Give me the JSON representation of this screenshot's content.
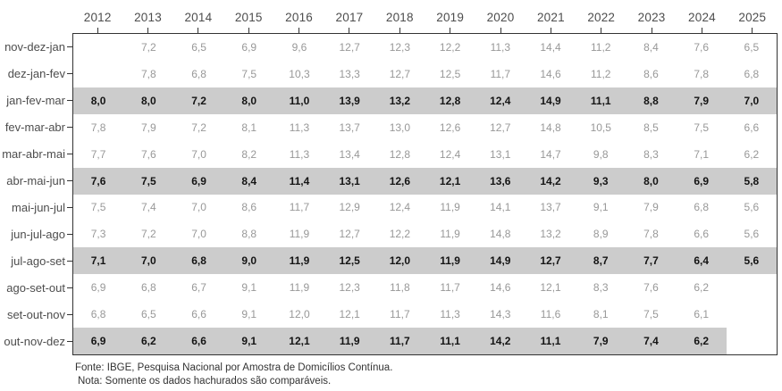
{
  "chart_data": {
    "type": "table",
    "title": "",
    "columns": [
      "2012",
      "2013",
      "2014",
      "2015",
      "2016",
      "2017",
      "2018",
      "2019",
      "2020",
      "2021",
      "2022",
      "2023",
      "2024",
      "2025"
    ],
    "rows": [
      {
        "label": "nov-dez-jan",
        "comparable": false,
        "values": [
          null,
          7.2,
          6.5,
          6.9,
          9.6,
          12.7,
          12.3,
          12.2,
          11.3,
          14.4,
          11.2,
          8.4,
          7.6,
          6.5
        ]
      },
      {
        "label": "dez-jan-fev",
        "comparable": false,
        "values": [
          null,
          7.8,
          6.8,
          7.5,
          10.3,
          13.3,
          12.7,
          12.5,
          11.7,
          14.6,
          11.2,
          8.6,
          7.8,
          6.8
        ]
      },
      {
        "label": "jan-fev-mar",
        "comparable": true,
        "values": [
          8.0,
          8.0,
          7.2,
          8.0,
          11.0,
          13.9,
          13.2,
          12.8,
          12.4,
          14.9,
          11.1,
          8.8,
          7.9,
          7.0
        ]
      },
      {
        "label": "fev-mar-abr",
        "comparable": false,
        "values": [
          7.8,
          7.9,
          7.2,
          8.1,
          11.3,
          13.7,
          13.0,
          12.6,
          12.7,
          14.8,
          10.5,
          8.5,
          7.5,
          6.6
        ]
      },
      {
        "label": "mar-abr-mai",
        "comparable": false,
        "values": [
          7.7,
          7.6,
          7.0,
          8.2,
          11.3,
          13.4,
          12.8,
          12.4,
          13.1,
          14.7,
          9.8,
          8.3,
          7.1,
          6.2
        ]
      },
      {
        "label": "abr-mai-jun",
        "comparable": true,
        "values": [
          7.6,
          7.5,
          6.9,
          8.4,
          11.4,
          13.1,
          12.6,
          12.1,
          13.6,
          14.2,
          9.3,
          8.0,
          6.9,
          5.8
        ]
      },
      {
        "label": "mai-jun-jul",
        "comparable": false,
        "values": [
          7.5,
          7.4,
          7.0,
          8.6,
          11.7,
          12.9,
          12.4,
          11.9,
          14.1,
          13.7,
          9.1,
          7.9,
          6.8,
          5.6
        ]
      },
      {
        "label": "jun-jul-ago",
        "comparable": false,
        "values": [
          7.3,
          7.2,
          7.0,
          8.8,
          11.9,
          12.7,
          12.2,
          11.9,
          14.8,
          13.2,
          8.9,
          7.8,
          6.6,
          5.6
        ]
      },
      {
        "label": "jul-ago-set",
        "comparable": true,
        "values": [
          7.1,
          7.0,
          6.8,
          9.0,
          11.9,
          12.5,
          12.0,
          11.9,
          14.9,
          12.7,
          8.7,
          7.7,
          6.4,
          5.6
        ]
      },
      {
        "label": "ago-set-out",
        "comparable": false,
        "values": [
          6.9,
          6.8,
          6.7,
          9.1,
          11.9,
          12.3,
          11.8,
          11.7,
          14.6,
          12.1,
          8.3,
          7.6,
          6.2,
          null
        ]
      },
      {
        "label": "set-out-nov",
        "comparable": false,
        "values": [
          6.8,
          6.5,
          6.6,
          9.1,
          12.0,
          12.1,
          11.7,
          11.3,
          14.3,
          11.6,
          8.1,
          7.5,
          6.1,
          null
        ]
      },
      {
        "label": "out-nov-dez",
        "comparable": true,
        "values": [
          6.9,
          6.2,
          6.6,
          9.1,
          12.1,
          11.9,
          11.7,
          11.1,
          14.2,
          11.1,
          7.9,
          7.4,
          6.2,
          null
        ]
      }
    ],
    "value_format": "one decimal, comma separator",
    "legend_position": "none",
    "grid": false
  },
  "colors": {
    "highlight_band": "#cccccc",
    "muted_value_text": "#989898",
    "highlight_value_text": "#141414",
    "axis_text": "#4d4d4d",
    "panel_border": "#333333"
  },
  "footer": {
    "source": "Fonte: IBGE, Pesquisa Nacional por Amostra de Domicílios Contínua.",
    "note": "Nota: Somente os dados hachurados são comparáveis."
  }
}
